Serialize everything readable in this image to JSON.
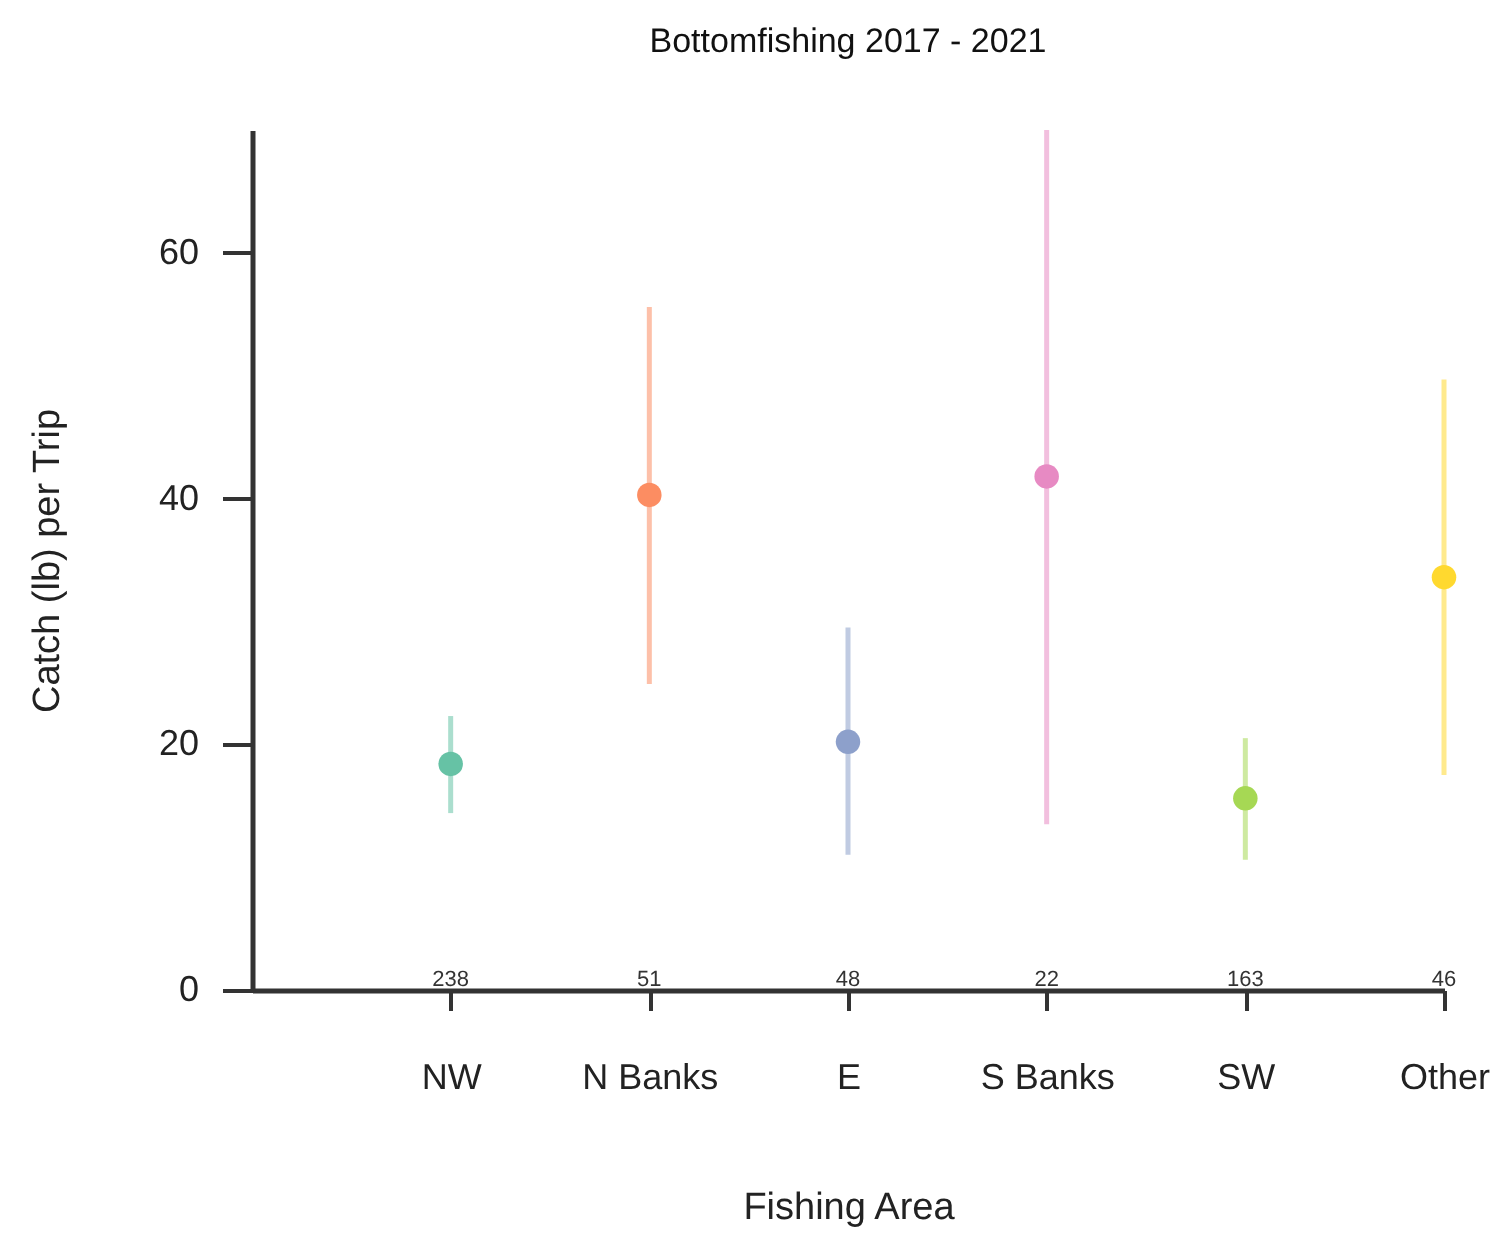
{
  "chart_data": {
    "type": "scatter",
    "title": "Bottomfishing 2017 - 2021",
    "xlabel": "Fishing Area",
    "ylabel": "Catch (lb) per Trip",
    "categories": [
      "NW",
      "N Banks",
      "E",
      "S Banks",
      "SW",
      "Other"
    ],
    "values": [
      18.4,
      40.3,
      20.2,
      41.8,
      15.6,
      33.6
    ],
    "errors": [
      [
        14.4,
        22.3
      ],
      [
        24.9,
        55.6
      ],
      [
        11.0,
        29.5
      ],
      [
        13.5,
        70
      ],
      [
        10.6,
        20.5
      ],
      [
        17.5,
        49.7
      ]
    ],
    "colors": [
      "#66c2a5",
      "#fc8d62",
      "#8da0cb",
      "#e78ac3",
      "#a6d854",
      "#ffd92f"
    ],
    "ylim": [
      0,
      70
    ],
    "yticks": [
      0,
      20,
      40,
      60
    ],
    "marker": "circle",
    "grid": false,
    "annotations": [
      "238",
      "51",
      "48",
      "22",
      "163",
      "46"
    ]
  }
}
